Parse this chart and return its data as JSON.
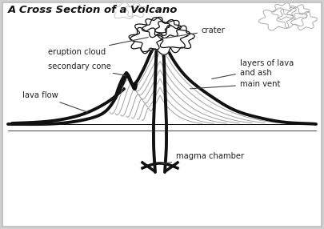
{
  "title": "A Cross Section of a Volcano",
  "bg_color": "#ffffff",
  "border_color": "#bbbbbb",
  "labels": {
    "eruption_cloud": "eruption cloud",
    "crater": "crater",
    "secondary_cone": "secondary cone",
    "lava_flow": "lava flow",
    "layers": "layers of lava\nand ash",
    "main_vent": "main vent",
    "magma_chamber": "magma chamber"
  },
  "line_color": "#111111",
  "layer_color": "#888888",
  "thick_lw": 2.8,
  "thin_lw": 0.8,
  "cloud_lw": 0.9,
  "font_size": 7.2,
  "title_font_size": 9.5,
  "figsize": [
    4.05,
    2.86
  ],
  "dpi": 100
}
